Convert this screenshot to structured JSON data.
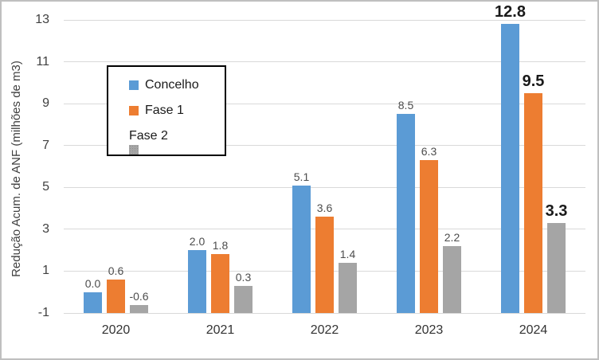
{
  "chart_data": {
    "type": "bar",
    "title": "",
    "xlabel": "",
    "ylabel": "Redução Acum. de ANF (milhões de m3)",
    "categories": [
      "2020",
      "2021",
      "2022",
      "2023",
      "2024"
    ],
    "series": [
      {
        "name": "Concelho",
        "color": "#5B9BD5",
        "pattern": "solid",
        "values": [
          0.0,
          2.0,
          5.1,
          8.5,
          12.8
        ],
        "labels": [
          "0.0",
          "2.0",
          "5.1",
          "8.5",
          "12.8"
        ]
      },
      {
        "name": "Fase 1",
        "color": "#ED7D31",
        "pattern": "solid",
        "values": [
          0.6,
          1.8,
          3.6,
          6.3,
          9.5
        ],
        "labels": [
          "0.6",
          "1.8",
          "3.6",
          "6.3",
          "9.5"
        ]
      },
      {
        "name": "Fase 2",
        "color": "#A5A5A5",
        "pattern": "dotted",
        "values": [
          -0.6,
          0.3,
          1.4,
          2.2,
          3.3
        ],
        "labels": [
          "-0.6",
          "0.3",
          "1.4",
          "2.2",
          "3.3"
        ]
      }
    ],
    "ylim": [
      -1,
      13
    ],
    "yticks": [
      -1,
      1,
      3,
      5,
      7,
      9,
      11,
      13
    ],
    "bar_base": -1,
    "grid": true,
    "gridline_color": "#D9D9D9",
    "legend_position": "upper-left-inside",
    "legend_border_color": "#000000",
    "emphasized_category": "2024"
  }
}
